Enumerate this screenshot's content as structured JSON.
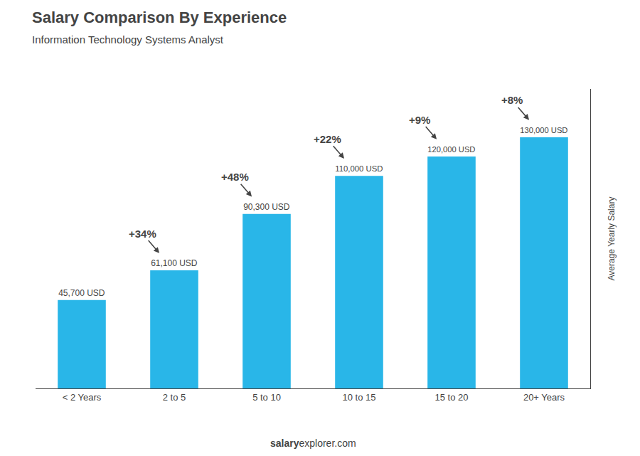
{
  "chart_data": {
    "type": "bar",
    "title": "Salary Comparison By Experience",
    "subtitle": "Information Technology Systems Analyst",
    "categories": [
      "< 2 Years",
      "2 to 5",
      "5 to 10",
      "10 to 15",
      "15 to 20",
      "20+ Years"
    ],
    "values": [
      45700,
      61100,
      90300,
      110000,
      120000,
      130000
    ],
    "value_labels": [
      "45,700 USD",
      "61,100 USD",
      "90,300 USD",
      "110,000 USD",
      "120,000 USD",
      "130,000 USD"
    ],
    "data_labels": true,
    "color": "#29b6e8",
    "ylabel": "Average Yearly Salary",
    "ylim": [
      0,
      155000
    ],
    "tick_labels": "x",
    "grid": false,
    "annotations": [
      "+34%",
      "+48%",
      "+22%",
      "+9%",
      "+8%"
    ],
    "footer": [
      "salary",
      "explorer.com"
    ]
  }
}
